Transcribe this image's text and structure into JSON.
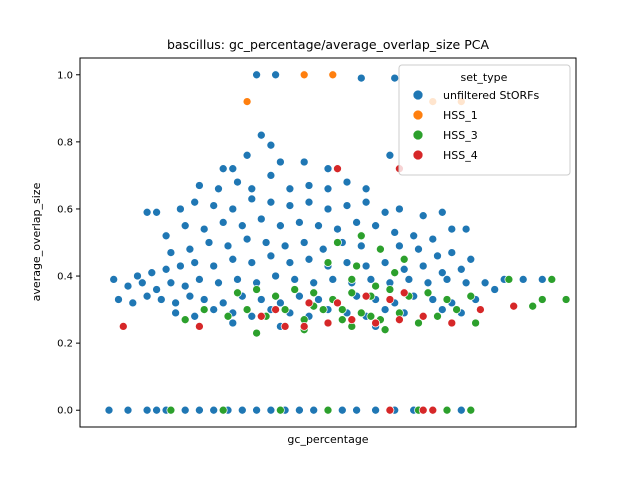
{
  "chart_data": {
    "type": "scatter",
    "title": "bascillus: gc_percentage/average_overlap_size PCA",
    "xlabel": "gc_percentage",
    "ylabel": "average_overlap_size",
    "xlim": [
      0,
      1
    ],
    "ylim": [
      -0.05,
      1.05
    ],
    "yticks": [
      "0.0",
      "0.2",
      "0.4",
      "0.6",
      "0.8",
      "1.0"
    ],
    "xticks": [],
    "grid": false,
    "legend": {
      "title": "set_type",
      "placement": "top-right",
      "entries": [
        "unfiltered StORFs",
        "HSS_1",
        "HSS_3",
        "HSS_4"
      ]
    },
    "colors": {
      "unfiltered StORFs": "#1f77b4",
      "HSS_1": "#ff7f0e",
      "HSS_3": "#2ca02c",
      "HSS_4": "#d62728"
    },
    "series": [
      {
        "name": "unfiltered StORFs",
        "points": [
          [
            0.04,
            0.0
          ],
          [
            0.08,
            0.0
          ],
          [
            0.12,
            0.0
          ],
          [
            0.14,
            0.0
          ],
          [
            0.16,
            0.0
          ],
          [
            0.2,
            0.0
          ],
          [
            0.23,
            0.0
          ],
          [
            0.26,
            0.0
          ],
          [
            0.29,
            0.0
          ],
          [
            0.32,
            0.0
          ],
          [
            0.35,
            0.0
          ],
          [
            0.38,
            0.0
          ],
          [
            0.41,
            0.0
          ],
          [
            0.44,
            0.0
          ],
          [
            0.47,
            0.0
          ],
          [
            0.5,
            0.0
          ],
          [
            0.53,
            0.0
          ],
          [
            0.56,
            0.0
          ],
          [
            0.6,
            0.0
          ],
          [
            0.64,
            0.0
          ],
          [
            0.68,
            0.0
          ],
          [
            0.72,
            0.0
          ],
          [
            0.75,
            0.0
          ],
          [
            0.78,
            0.0
          ],
          [
            0.35,
            1.0
          ],
          [
            0.39,
            1.0
          ],
          [
            0.57,
            0.99
          ],
          [
            0.64,
            0.99
          ],
          [
            0.36,
            0.82
          ],
          [
            0.33,
            0.76
          ],
          [
            0.38,
            0.79
          ],
          [
            0.28,
            0.72
          ],
          [
            0.3,
            0.72
          ],
          [
            0.4,
            0.74
          ],
          [
            0.45,
            0.74
          ],
          [
            0.5,
            0.72
          ],
          [
            0.63,
            0.76
          ],
          [
            0.23,
            0.67
          ],
          [
            0.27,
            0.66
          ],
          [
            0.31,
            0.68
          ],
          [
            0.34,
            0.66
          ],
          [
            0.38,
            0.7
          ],
          [
            0.42,
            0.66
          ],
          [
            0.46,
            0.67
          ],
          [
            0.5,
            0.66
          ],
          [
            0.54,
            0.68
          ],
          [
            0.58,
            0.66
          ],
          [
            0.12,
            0.59
          ],
          [
            0.14,
            0.59
          ],
          [
            0.19,
            0.6
          ],
          [
            0.22,
            0.62
          ],
          [
            0.26,
            0.61
          ],
          [
            0.3,
            0.6
          ],
          [
            0.34,
            0.63
          ],
          [
            0.38,
            0.62
          ],
          [
            0.42,
            0.61
          ],
          [
            0.46,
            0.62
          ],
          [
            0.5,
            0.6
          ],
          [
            0.54,
            0.61
          ],
          [
            0.58,
            0.62
          ],
          [
            0.62,
            0.59
          ],
          [
            0.65,
            0.6
          ],
          [
            0.7,
            0.58
          ],
          [
            0.74,
            0.59
          ],
          [
            0.16,
            0.52
          ],
          [
            0.2,
            0.55
          ],
          [
            0.24,
            0.54
          ],
          [
            0.28,
            0.56
          ],
          [
            0.32,
            0.55
          ],
          [
            0.36,
            0.57
          ],
          [
            0.4,
            0.55
          ],
          [
            0.44,
            0.56
          ],
          [
            0.48,
            0.55
          ],
          [
            0.52,
            0.54
          ],
          [
            0.56,
            0.56
          ],
          [
            0.6,
            0.55
          ],
          [
            0.64,
            0.53
          ],
          [
            0.68,
            0.52
          ],
          [
            0.72,
            0.51
          ],
          [
            0.76,
            0.54
          ],
          [
            0.79,
            0.54
          ],
          [
            0.17,
            0.47
          ],
          [
            0.21,
            0.48
          ],
          [
            0.25,
            0.5
          ],
          [
            0.29,
            0.49
          ],
          [
            0.33,
            0.51
          ],
          [
            0.37,
            0.5
          ],
          [
            0.41,
            0.49
          ],
          [
            0.45,
            0.5
          ],
          [
            0.49,
            0.48
          ],
          [
            0.53,
            0.5
          ],
          [
            0.57,
            0.49
          ],
          [
            0.61,
            0.48
          ],
          [
            0.65,
            0.49
          ],
          [
            0.69,
            0.48
          ],
          [
            0.73,
            0.46
          ],
          [
            0.76,
            0.47
          ],
          [
            0.8,
            0.45
          ],
          [
            0.1,
            0.4
          ],
          [
            0.13,
            0.41
          ],
          [
            0.16,
            0.42
          ],
          [
            0.19,
            0.43
          ],
          [
            0.22,
            0.44
          ],
          [
            0.26,
            0.43
          ],
          [
            0.3,
            0.45
          ],
          [
            0.34,
            0.44
          ],
          [
            0.38,
            0.46
          ],
          [
            0.42,
            0.44
          ],
          [
            0.46,
            0.45
          ],
          [
            0.5,
            0.43
          ],
          [
            0.54,
            0.44
          ],
          [
            0.58,
            0.43
          ],
          [
            0.62,
            0.44
          ],
          [
            0.66,
            0.42
          ],
          [
            0.7,
            0.43
          ],
          [
            0.74,
            0.41
          ],
          [
            0.78,
            0.42
          ],
          [
            0.05,
            0.39
          ],
          [
            0.08,
            0.37
          ],
          [
            0.11,
            0.38
          ],
          [
            0.14,
            0.36
          ],
          [
            0.17,
            0.38
          ],
          [
            0.2,
            0.37
          ],
          [
            0.23,
            0.39
          ],
          [
            0.27,
            0.38
          ],
          [
            0.31,
            0.39
          ],
          [
            0.35,
            0.38
          ],
          [
            0.39,
            0.4
          ],
          [
            0.43,
            0.39
          ],
          [
            0.47,
            0.38
          ],
          [
            0.51,
            0.39
          ],
          [
            0.55,
            0.38
          ],
          [
            0.59,
            0.39
          ],
          [
            0.63,
            0.38
          ],
          [
            0.67,
            0.39
          ],
          [
            0.71,
            0.38
          ],
          [
            0.75,
            0.39
          ],
          [
            0.79,
            0.38
          ],
          [
            0.83,
            0.38
          ],
          [
            0.87,
            0.39
          ],
          [
            0.91,
            0.39
          ],
          [
            0.95,
            0.39
          ],
          [
            0.06,
            0.33
          ],
          [
            0.09,
            0.32
          ],
          [
            0.12,
            0.34
          ],
          [
            0.15,
            0.33
          ],
          [
            0.18,
            0.32
          ],
          [
            0.21,
            0.34
          ],
          [
            0.24,
            0.33
          ],
          [
            0.28,
            0.32
          ],
          [
            0.32,
            0.34
          ],
          [
            0.36,
            0.33
          ],
          [
            0.4,
            0.32
          ],
          [
            0.44,
            0.34
          ],
          [
            0.48,
            0.33
          ],
          [
            0.52,
            0.32
          ],
          [
            0.56,
            0.34
          ],
          [
            0.6,
            0.33
          ],
          [
            0.64,
            0.32
          ],
          [
            0.68,
            0.34
          ],
          [
            0.72,
            0.33
          ],
          [
            0.76,
            0.32
          ],
          [
            0.81,
            0.33
          ],
          [
            0.85,
            0.36
          ],
          [
            0.18,
            0.29
          ],
          [
            0.22,
            0.28
          ],
          [
            0.26,
            0.3
          ],
          [
            0.3,
            0.29
          ],
          [
            0.34,
            0.28
          ],
          [
            0.38,
            0.3
          ],
          [
            0.42,
            0.29
          ],
          [
            0.46,
            0.28
          ],
          [
            0.5,
            0.3
          ],
          [
            0.54,
            0.29
          ],
          [
            0.58,
            0.28
          ],
          [
            0.62,
            0.3
          ],
          [
            0.66,
            0.29
          ],
          [
            0.7,
            0.28
          ],
          [
            0.74,
            0.3
          ],
          [
            0.78,
            0.29
          ],
          [
            0.3,
            0.26
          ],
          [
            0.4,
            0.25
          ],
          [
            0.5,
            0.26
          ],
          [
            0.6,
            0.25
          ]
        ]
      },
      {
        "name": "HSS_1",
        "points": [
          [
            0.33,
            0.92
          ],
          [
            0.45,
            1.0
          ],
          [
            0.51,
            1.0
          ],
          [
            0.72,
            0.92
          ],
          [
            0.65,
            0.72
          ],
          [
            0.78,
            0.92
          ]
        ]
      },
      {
        "name": "HSS_3",
        "points": [
          [
            0.17,
            0.0
          ],
          [
            0.28,
            0.0
          ],
          [
            0.4,
            0.0
          ],
          [
            0.5,
            0.0
          ],
          [
            0.63,
            0.0
          ],
          [
            0.69,
            0.0
          ],
          [
            0.75,
            0.0
          ],
          [
            0.8,
            0.0
          ],
          [
            0.47,
            0.31
          ],
          [
            0.53,
            0.3
          ],
          [
            0.59,
            0.28
          ],
          [
            0.64,
            0.41
          ],
          [
            0.6,
            0.37
          ],
          [
            0.55,
            0.39
          ],
          [
            0.2,
            0.27
          ],
          [
            0.24,
            0.3
          ],
          [
            0.29,
            0.28
          ],
          [
            0.33,
            0.3
          ],
          [
            0.37,
            0.28
          ],
          [
            0.41,
            0.3
          ],
          [
            0.45,
            0.27
          ],
          [
            0.49,
            0.3
          ],
          [
            0.53,
            0.27
          ],
          [
            0.57,
            0.29
          ],
          [
            0.61,
            0.27
          ],
          [
            0.65,
            0.29
          ],
          [
            0.69,
            0.26
          ],
          [
            0.73,
            0.28
          ],
          [
            0.77,
            0.3
          ],
          [
            0.81,
            0.26
          ],
          [
            0.35,
            0.23
          ],
          [
            0.45,
            0.24
          ],
          [
            0.55,
            0.25
          ],
          [
            0.62,
            0.24
          ],
          [
            0.31,
            0.35
          ],
          [
            0.35,
            0.36
          ],
          [
            0.39,
            0.34
          ],
          [
            0.43,
            0.36
          ],
          [
            0.47,
            0.35
          ],
          [
            0.51,
            0.33
          ],
          [
            0.55,
            0.35
          ],
          [
            0.59,
            0.34
          ],
          [
            0.63,
            0.36
          ],
          [
            0.67,
            0.34
          ],
          [
            0.71,
            0.35
          ],
          [
            0.75,
            0.33
          ],
          [
            0.8,
            0.34
          ],
          [
            0.88,
            0.39
          ],
          [
            0.93,
            0.31
          ],
          [
            0.95,
            0.33
          ],
          [
            0.97,
            0.39
          ],
          [
            1.0,
            0.33
          ],
          [
            0.52,
            0.5
          ],
          [
            0.57,
            0.52
          ],
          [
            0.61,
            0.48
          ],
          [
            0.66,
            0.45
          ],
          [
            0.5,
            0.44
          ],
          [
            0.56,
            0.43
          ]
        ]
      },
      {
        "name": "HSS_4",
        "points": [
          [
            0.63,
            0.0
          ],
          [
            0.72,
            0.0
          ],
          [
            0.7,
            0.0
          ],
          [
            0.07,
            0.25
          ],
          [
            0.23,
            0.25
          ],
          [
            0.36,
            0.28
          ],
          [
            0.41,
            0.25
          ],
          [
            0.45,
            0.25
          ],
          [
            0.5,
            0.26
          ],
          [
            0.55,
            0.27
          ],
          [
            0.6,
            0.26
          ],
          [
            0.65,
            0.27
          ],
          [
            0.7,
            0.28
          ],
          [
            0.76,
            0.26
          ],
          [
            0.82,
            0.3
          ],
          [
            0.89,
            0.31
          ],
          [
            0.39,
            0.3
          ],
          [
            0.46,
            0.32
          ],
          [
            0.52,
            0.32
          ],
          [
            0.58,
            0.34
          ],
          [
            0.63,
            0.33
          ],
          [
            0.66,
            0.35
          ],
          [
            0.52,
            0.72
          ],
          [
            0.65,
            0.72
          ]
        ]
      }
    ]
  }
}
